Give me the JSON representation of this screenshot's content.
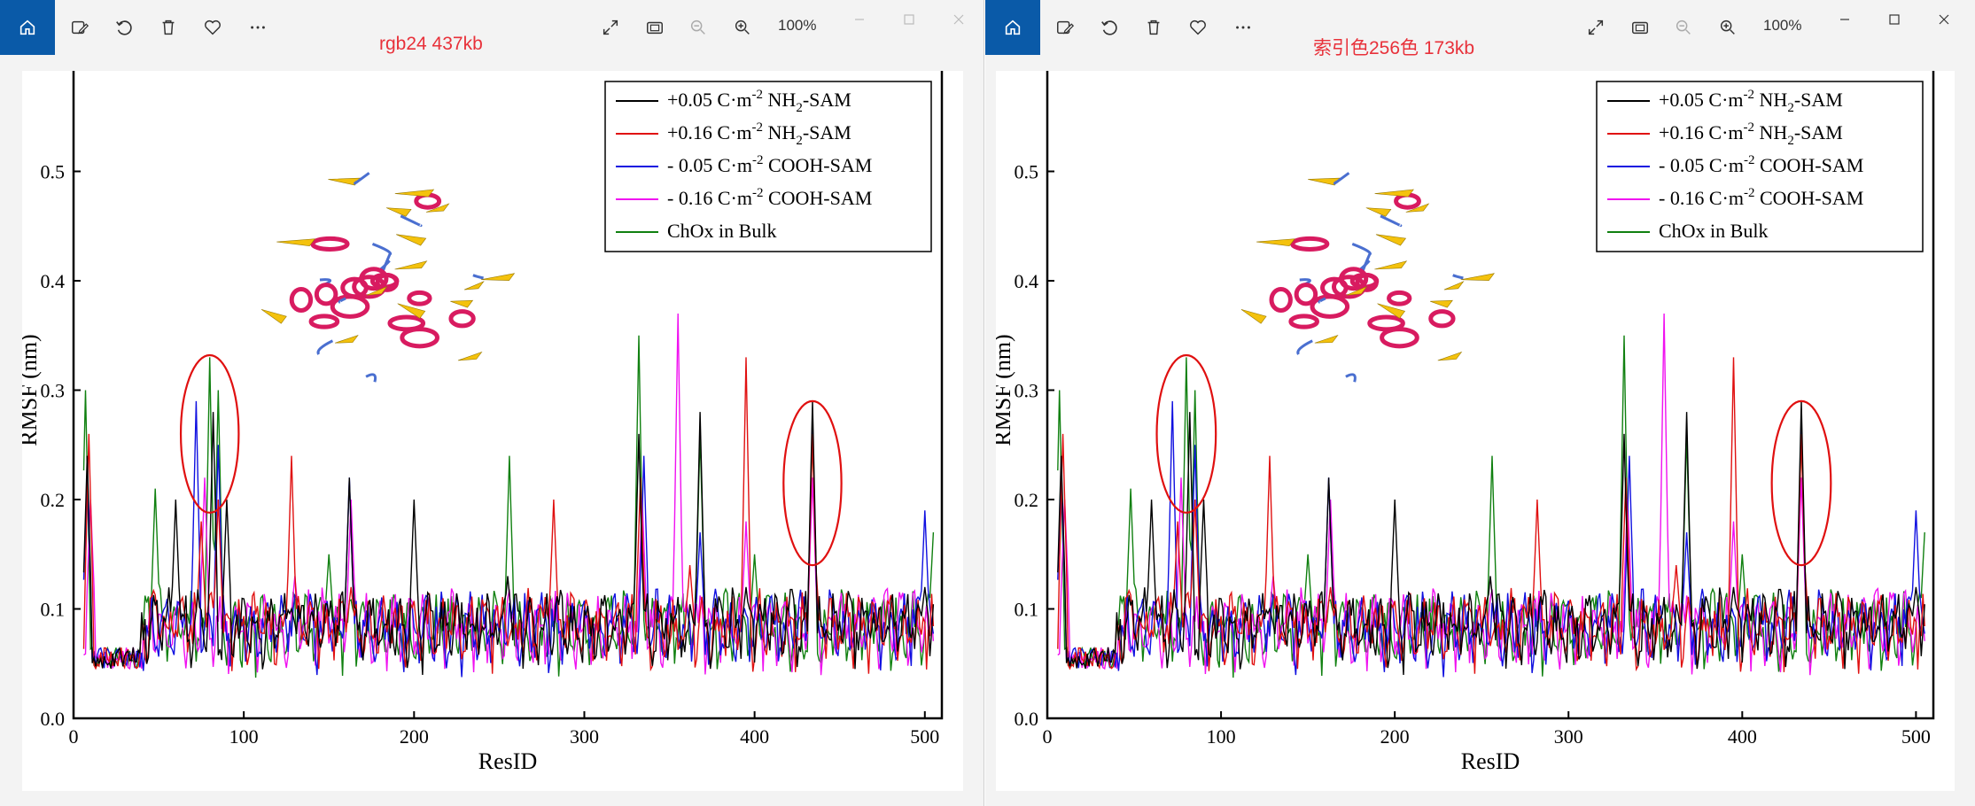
{
  "windows": [
    {
      "id": "left",
      "caption": "rgb24 437kb",
      "zoom": "100%"
    },
    {
      "id": "right",
      "caption": "索引色256色 173kb",
      "zoom": "100%"
    }
  ],
  "toolbar": {
    "icons": [
      "home-icon",
      "edit-image-icon",
      "rotate-icon",
      "delete-icon",
      "favorite-icon",
      "more-icon",
      "expand-icon",
      "fit-icon",
      "zoom-out-icon",
      "zoom-in-icon"
    ]
  },
  "colors": {
    "accent": "#0a5aa8",
    "caption": "#e8313a",
    "series_black": "#000000",
    "series_red": "#e01010",
    "series_blue": "#1010e0",
    "series_magenta": "#f010f0",
    "series_green": "#108010",
    "ellipse": "#e01010",
    "helix": "#d81b60",
    "sheet": "#f4c20d",
    "coil": "#4a6fd0"
  },
  "chart_data": {
    "type": "line",
    "title": "",
    "xlabel": "ResID",
    "ylabel": "RMSF (nm)",
    "xlim": [
      0,
      510
    ],
    "ylim": [
      0.0,
      0.6
    ],
    "xticks": [
      "0",
      "100",
      "200",
      "300",
      "400",
      "500"
    ],
    "yticks": [
      "0.0",
      "0.1",
      "0.2",
      "0.3",
      "0.4",
      "0.5",
      "0.6"
    ],
    "legend": {
      "position": "top-right",
      "entries": [
        {
          "prefix": "+0.05 C·m",
          "sup": "-2",
          "mid": " NH",
          "sub": "2",
          "suffix": "-SAM",
          "color": "#000000"
        },
        {
          "prefix": "+0.16 C·m",
          "sup": "-2",
          "mid": " NH",
          "sub": "2",
          "suffix": "-SAM",
          "color": "#e01010"
        },
        {
          "prefix": "- 0.05 C·m",
          "sup": "-2",
          "mid": " COOH-SAM",
          "sub": "",
          "suffix": "",
          "color": "#1010e0"
        },
        {
          "prefix": "- 0.16 C·m",
          "sup": "-2",
          "mid": " COOH-SAM",
          "sub": "",
          "suffix": "",
          "color": "#f010f0"
        },
        {
          "prefix": " ChOx in Bulk",
          "sup": "",
          "mid": "",
          "sub": "",
          "suffix": "",
          "color": "#108010"
        }
      ]
    },
    "peaks": {
      "black": [
        [
          8,
          0.24
        ],
        [
          60,
          0.2
        ],
        [
          82,
          0.28
        ],
        [
          90,
          0.2
        ],
        [
          128,
          0.1
        ],
        [
          162,
          0.22
        ],
        [
          200,
          0.2
        ],
        [
          255,
          0.13
        ],
        [
          332,
          0.26
        ],
        [
          368,
          0.28
        ],
        [
          395,
          0.12
        ],
        [
          434,
          0.29
        ],
        [
          500,
          0.12
        ]
      ],
      "red": [
        [
          9,
          0.26
        ],
        [
          75,
          0.18
        ],
        [
          85,
          0.2
        ],
        [
          128,
          0.24
        ],
        [
          163,
          0.12
        ],
        [
          282,
          0.2
        ],
        [
          333,
          0.22
        ],
        [
          362,
          0.14
        ],
        [
          395,
          0.33
        ],
        [
          434,
          0.26
        ]
      ],
      "blue": [
        [
          8,
          0.22
        ],
        [
          72,
          0.29
        ],
        [
          85,
          0.25
        ],
        [
          162,
          0.22
        ],
        [
          335,
          0.24
        ],
        [
          368,
          0.17
        ],
        [
          434,
          0.27
        ],
        [
          500,
          0.19
        ]
      ],
      "magenta": [
        [
          10,
          0.2
        ],
        [
          77,
          0.22
        ],
        [
          130,
          0.13
        ],
        [
          163,
          0.2
        ],
        [
          334,
          0.2
        ],
        [
          355,
          0.37
        ],
        [
          395,
          0.18
        ],
        [
          434,
          0.22
        ]
      ],
      "green": [
        [
          7,
          0.3
        ],
        [
          48,
          0.21
        ],
        [
          80,
          0.33
        ],
        [
          85,
          0.3
        ],
        [
          150,
          0.15
        ],
        [
          256,
          0.24
        ],
        [
          332,
          0.35
        ],
        [
          368,
          0.26
        ],
        [
          400,
          0.15
        ],
        [
          434,
          0.26
        ],
        [
          505,
          0.17
        ]
      ]
    },
    "annotations": [
      {
        "type": "ellipse",
        "x_center": 80,
        "y_center": 0.26,
        "x_radius": 17,
        "y_radius": 0.072
      },
      {
        "type": "ellipse",
        "x_center": 434,
        "y_center": 0.215,
        "x_radius": 17,
        "y_radius": 0.075
      }
    ]
  }
}
